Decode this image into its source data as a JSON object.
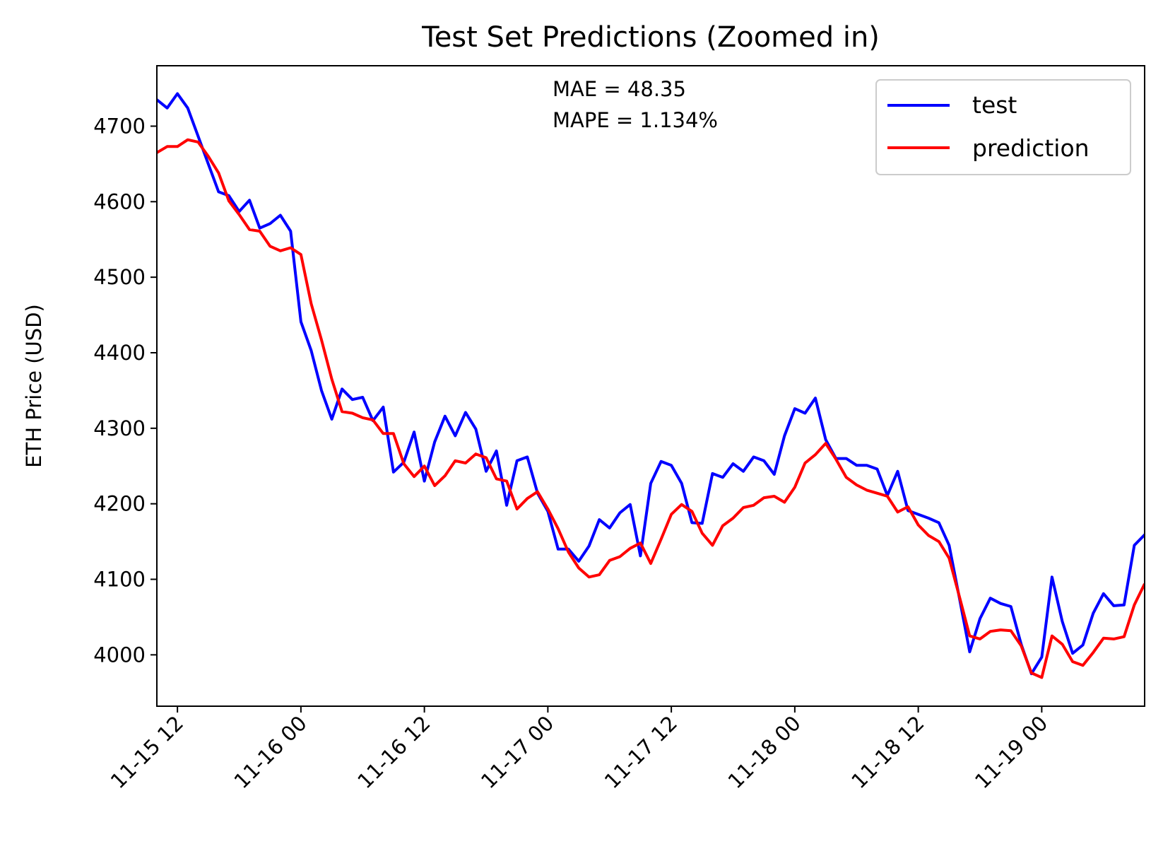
{
  "chart_data": {
    "type": "line",
    "title": "Test Set Predictions (Zoomed in)",
    "xlabel": "",
    "ylabel": "ETH Price (USD)",
    "x_start": "2021-11-15T09:00",
    "x_step_hours": 1,
    "xlim": [
      "2021-11-15T10:00",
      "2021-11-19T10:00"
    ],
    "ylim": [
      3932,
      4780
    ],
    "y_ticks": [
      4000,
      4100,
      4200,
      4300,
      4400,
      4500,
      4600,
      4700
    ],
    "x_ticks": [
      {
        "t": "2021-11-15T12:00",
        "label": "11-15 12"
      },
      {
        "t": "2021-11-16T00:00",
        "label": "11-16 00"
      },
      {
        "t": "2021-11-16T12:00",
        "label": "11-16 12"
      },
      {
        "t": "2021-11-17T00:00",
        "label": "11-17 00"
      },
      {
        "t": "2021-11-17T12:00",
        "label": "11-17 12"
      },
      {
        "t": "2021-11-18T00:00",
        "label": "11-18 00"
      },
      {
        "t": "2021-11-18T12:00",
        "label": "11-18 12"
      },
      {
        "t": "2021-11-19T00:00",
        "label": "11-19 00"
      }
    ],
    "annotations": [
      "MAE = 48.35",
      "MAPE = 1.134%"
    ],
    "legend_position": "top-right",
    "grid": false,
    "series": [
      {
        "name": "test",
        "color": "#0000ff",
        "values": [
          4751,
          4735,
          4724,
          4743,
          4724,
          4687,
          4650,
          4613,
          4608,
          4587,
          4602,
          4565,
          4571,
          4582,
          4561,
          4441,
          4403,
          4350,
          4312,
          4352,
          4338,
          4341,
          4310,
          4328,
          4242,
          4255,
          4295,
          4230,
          4282,
          4316,
          4290,
          4321,
          4299,
          4243,
          4270,
          4198,
          4257,
          4262,
          4214,
          4190,
          4140,
          4140,
          4124,
          4144,
          4179,
          4168,
          4188,
          4199,
          4131,
          4227,
          4256,
          4251,
          4227,
          4175,
          4174,
          4240,
          4235,
          4253,
          4243,
          4262,
          4257,
          4239,
          4290,
          4326,
          4320,
          4340,
          4285,
          4260,
          4260,
          4251,
          4251,
          4246,
          4211,
          4243,
          4191,
          4186,
          4181,
          4175,
          4145,
          4075,
          4004,
          4048,
          4075,
          4068,
          4064,
          4014,
          3975,
          3997,
          4103,
          4044,
          4002,
          4013,
          4055,
          4081,
          4065,
          4066,
          4145,
          4159,
          4149
        ]
      },
      {
        "name": "prediction",
        "color": "#ff0000",
        "values": [
          4658,
          4665,
          4673,
          4673,
          4682,
          4679,
          4660,
          4638,
          4601,
          4583,
          4563,
          4561,
          4541,
          4535,
          4539,
          4530,
          4465,
          4417,
          4365,
          4322,
          4320,
          4314,
          4311,
          4293,
          4293,
          4253,
          4236,
          4250,
          4224,
          4237,
          4257,
          4254,
          4266,
          4261,
          4233,
          4230,
          4193,
          4207,
          4216,
          4193,
          4167,
          4136,
          4115,
          4103,
          4106,
          4125,
          4130,
          4141,
          4148,
          4121,
          4153,
          4186,
          4199,
          4190,
          4161,
          4145,
          4171,
          4181,
          4195,
          4198,
          4208,
          4210,
          4202,
          4222,
          4254,
          4265,
          4280,
          4259,
          4235,
          4225,
          4218,
          4214,
          4210,
          4189,
          4196,
          4172,
          4158,
          4150,
          4128,
          4077,
          4025,
          4021,
          4031,
          4033,
          4032,
          4012,
          3976,
          3970,
          4025,
          4014,
          3991,
          3986,
          4003,
          4022,
          4021,
          4024,
          4066,
          4094
        ]
      }
    ]
  }
}
